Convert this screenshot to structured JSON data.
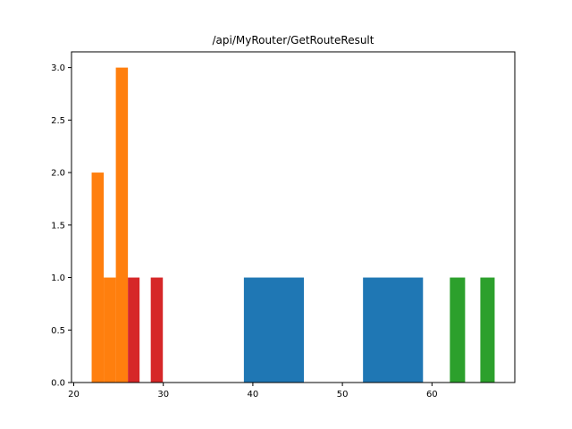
{
  "chart_data": {
    "type": "bar",
    "title": "/api/MyRouter/GetRouteResult",
    "xlabel": "",
    "ylabel": "",
    "xlim": [
      19.75,
      69.25
    ],
    "ylim": [
      0,
      3.15
    ],
    "xticks": [
      20,
      30,
      40,
      50,
      60
    ],
    "xtick_labels": [
      "20",
      "30",
      "40",
      "50",
      "60"
    ],
    "yticks": [
      0,
      0.5,
      1.0,
      1.5,
      2.0,
      2.5,
      3.0
    ],
    "ytick_labels": [
      "0.0",
      "0.5",
      "1.0",
      "1.5",
      "2.0",
      "2.5",
      "3.0"
    ],
    "grid": false,
    "series": [
      {
        "color": "#1f77b4",
        "bars": [
          {
            "x0": 39.0,
            "x1": 45.7,
            "value": 1
          },
          {
            "x0": 52.3,
            "x1": 59.0,
            "value": 1
          }
        ]
      },
      {
        "color": "#ff7f0e",
        "bars": [
          {
            "x0": 22.0,
            "x1": 23.35,
            "value": 2
          },
          {
            "x0": 23.35,
            "x1": 24.7,
            "value": 1
          },
          {
            "x0": 24.7,
            "x1": 26.05,
            "value": 3
          }
        ]
      },
      {
        "color": "#2ca02c",
        "bars": [
          {
            "x0": 62.0,
            "x1": 63.7,
            "value": 1
          },
          {
            "x0": 65.4,
            "x1": 67.0,
            "value": 1
          }
        ]
      },
      {
        "color": "#d62728",
        "bars": [
          {
            "x0": 26.05,
            "x1": 27.35,
            "value": 1
          },
          {
            "x0": 28.6,
            "x1": 29.95,
            "value": 1
          }
        ]
      }
    ]
  }
}
